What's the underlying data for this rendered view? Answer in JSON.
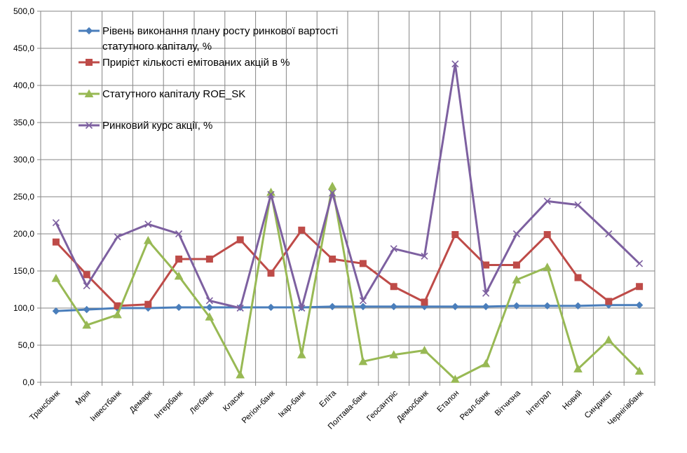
{
  "chart_data": {
    "type": "line",
    "title": "",
    "xlabel": "",
    "ylabel": "",
    "ylim": [
      0,
      500
    ],
    "ytick_step": 50,
    "ytick_labels": [
      "0,0",
      "50,0",
      "100,0",
      "150,0",
      "200,0",
      "250,0",
      "300,0",
      "350,0",
      "400,0",
      "450,0",
      "500,0"
    ],
    "grid": true,
    "legend_position": "top-left",
    "categories": [
      "Трансбанк",
      "Мрія",
      "Інвестбанк",
      "Демарк",
      "Інтербанк",
      "Легбанк",
      "Класик",
      "Регіон-банк",
      "Ікар-банк",
      "Еліта",
      "Полтава-банк",
      "Геосантріс",
      "Демосбанк",
      "Еталон",
      "Реал-банк",
      "Вітчизна",
      "Інтеграл",
      "Новий",
      "Синдикат",
      "Чернігівбанк"
    ],
    "series": [
      {
        "name": "Рівень виконання плану росту ринкової вартості статутного капіталу, %",
        "legend_lines": [
          "Рівень виконання плану росту ринкової вартості",
          "статутного капіталу, %"
        ],
        "color": "#4A7EBB",
        "marker": "diamond",
        "values": [
          96,
          98,
          100,
          100,
          101,
          101,
          101,
          101,
          101,
          102,
          102,
          102,
          102,
          102,
          102,
          103,
          103,
          103,
          104,
          104
        ]
      },
      {
        "name": "Приріст кількості емітованих акцій в %",
        "legend_lines": [
          "Приріст кількості емітованих акцій в %"
        ],
        "color": "#BE4B48",
        "marker": "square",
        "values": [
          189,
          145,
          103,
          105,
          166,
          166,
          192,
          147,
          205,
          166,
          160,
          129,
          108,
          199,
          158,
          158,
          199,
          141,
          109,
          129
        ]
      },
      {
        "name": "Статутного капіталу ROE_SK",
        "legend_lines": [
          "Статутного капіталу ROE_SK"
        ],
        "color": "#98B954",
        "marker": "triangle",
        "values": [
          140,
          77,
          91,
          191,
          143,
          88,
          10,
          256,
          37,
          264,
          28,
          37,
          43,
          4,
          25,
          138,
          155,
          18,
          57,
          15
        ]
      },
      {
        "name": "Ринковий курс акції, %",
        "legend_lines": [
          "Ринковий курс акції, %"
        ],
        "color": "#7D60A0",
        "marker": "x",
        "values": [
          215,
          130,
          196,
          213,
          200,
          110,
          100,
          253,
          100,
          255,
          110,
          180,
          170,
          429,
          120,
          200,
          244,
          239,
          200,
          160
        ]
      }
    ]
  }
}
